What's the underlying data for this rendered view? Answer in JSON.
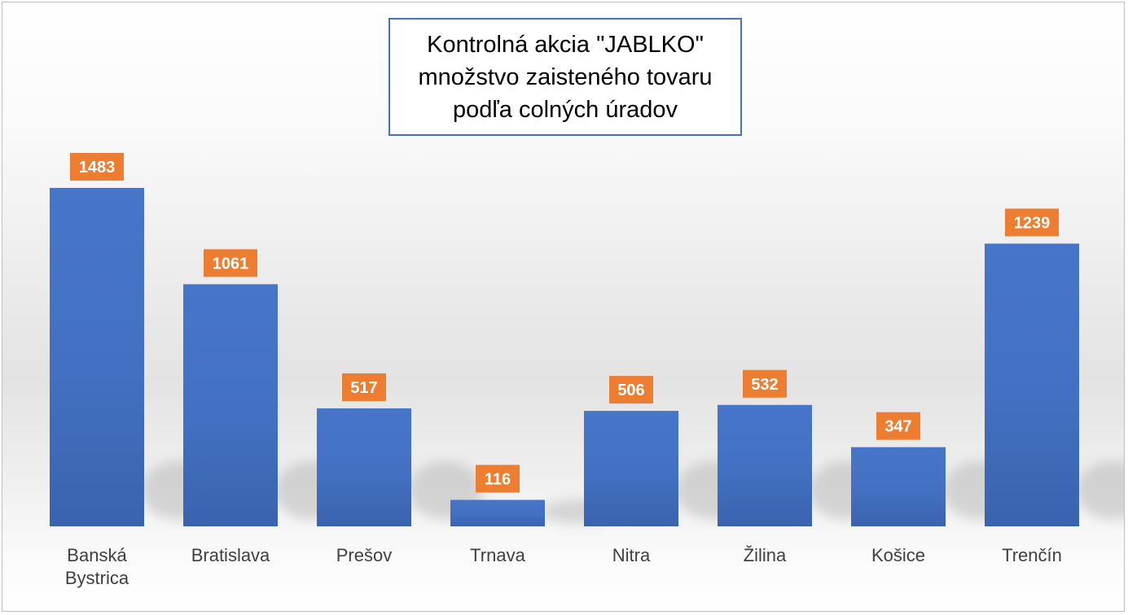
{
  "chart_data": {
    "type": "bar",
    "title": [
      "Kontrolná akcia \"JABLKO\"",
      "množstvo zaisteného tovaru",
      "podľa colných úradov"
    ],
    "categories": [
      "Banská\nBystrica",
      "Bratislava",
      "Prešov",
      "Trnava",
      "Nitra",
      "Žilina",
      "Košice",
      "Trenčín"
    ],
    "values": [
      1483,
      1061,
      517,
      116,
      506,
      532,
      347,
      1239
    ],
    "data_labels": [
      "1483",
      "1061",
      "517",
      "116",
      "506",
      "532",
      "347",
      "1239"
    ],
    "bar_color": "#4472c4",
    "label_color": "#ed7d31",
    "ylim": [
      0,
      1483
    ],
    "grid": false,
    "legend": false
  }
}
